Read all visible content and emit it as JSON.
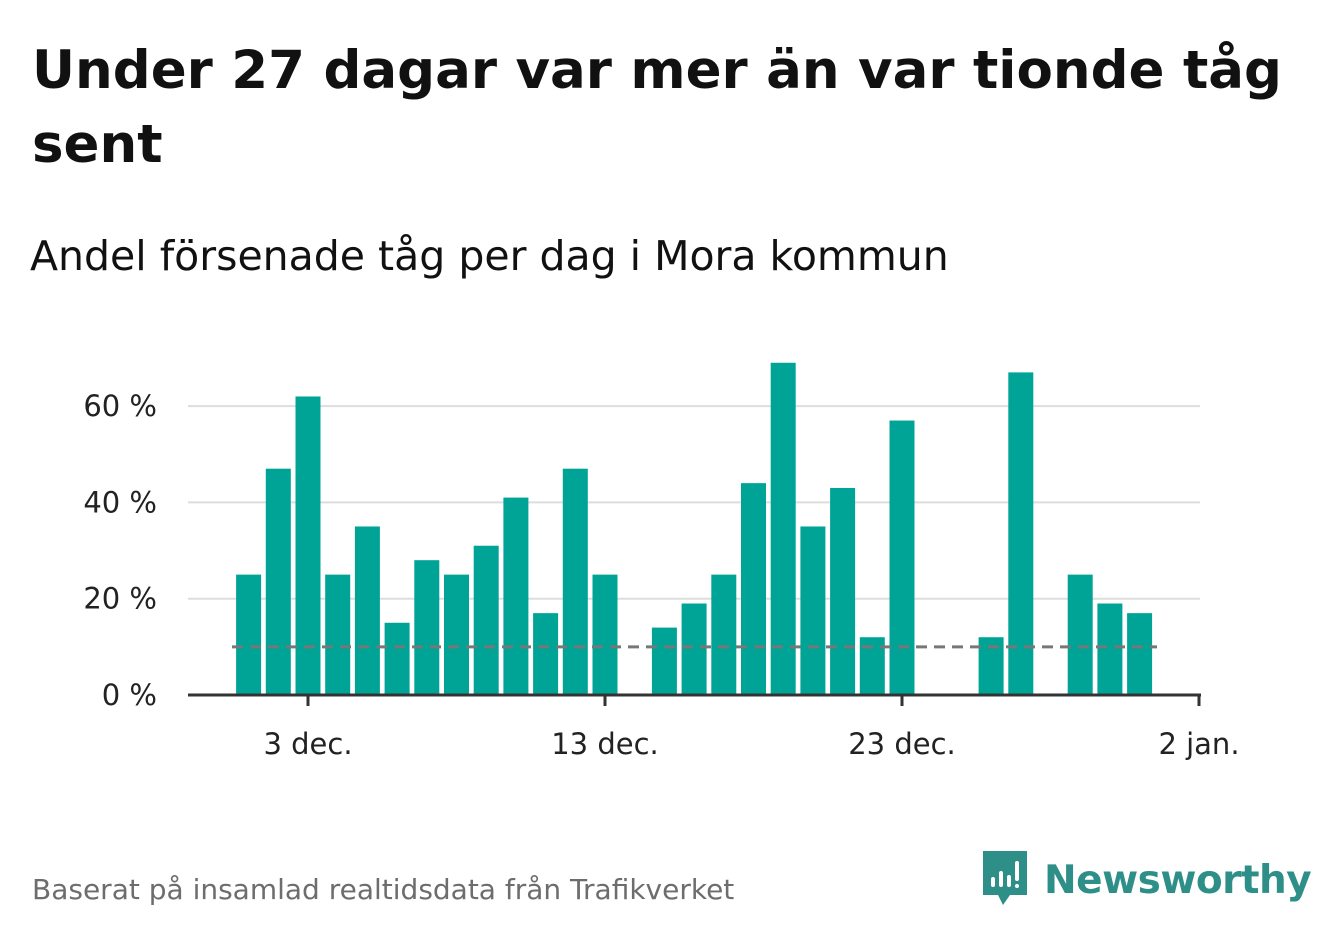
{
  "title": "Under 27 dagar var mer än var tionde tåg sent",
  "subtitle": "Andel försenade tåg per dag i Mora kommun",
  "source": "Baserat på insamlad realtidsdata från Trafikverket",
  "brand": {
    "name": "Newsworthy",
    "color": "#2e8f88"
  },
  "chart_data": {
    "type": "bar",
    "y_unit": "%",
    "ylim": [
      0,
      70
    ],
    "y_ticks": [
      0,
      20,
      40,
      60
    ],
    "y_tick_labels": [
      "0 %",
      "20 %",
      "40 %",
      "60 %"
    ],
    "x_ticks": [
      "2023-12-03",
      "2023-12-13",
      "2023-12-23",
      "2024-01-02"
    ],
    "x_tick_labels": [
      "3 dec.",
      "13 dec.",
      "23 dec.",
      "2 jan."
    ],
    "grid": true,
    "bar_color": "#00a497",
    "reference_line": {
      "value": 10,
      "style": "dashed",
      "color": "#777777"
    },
    "x": [
      "2023-12-01",
      "2023-12-02",
      "2023-12-03",
      "2023-12-04",
      "2023-12-05",
      "2023-12-06",
      "2023-12-07",
      "2023-12-08",
      "2023-12-09",
      "2023-12-10",
      "2023-12-11",
      "2023-12-12",
      "2023-12-13",
      "2023-12-14",
      "2023-12-15",
      "2023-12-16",
      "2023-12-17",
      "2023-12-18",
      "2023-12-19",
      "2023-12-20",
      "2023-12-21",
      "2023-12-22",
      "2023-12-23",
      "2023-12-24",
      "2023-12-25",
      "2023-12-26",
      "2023-12-27",
      "2023-12-28",
      "2023-12-29",
      "2023-12-30",
      "2023-12-31",
      "2024-01-01"
    ],
    "values": [
      25,
      47,
      62,
      25,
      35,
      15,
      28,
      25,
      31,
      41,
      17,
      47,
      25,
      0,
      14,
      19,
      25,
      44,
      69,
      35,
      43,
      12,
      57,
      0,
      0,
      12,
      67,
      0,
      25,
      19,
      17,
      null
    ]
  }
}
